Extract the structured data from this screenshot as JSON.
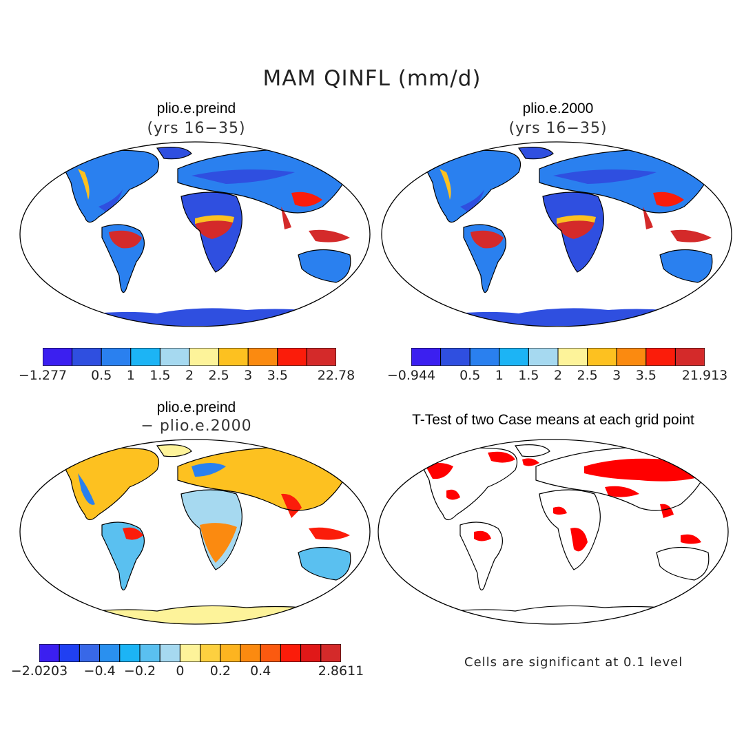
{
  "figure": {
    "title": "MAM QINFL (mm/d)",
    "note": "Cells are significant at 0.1 level"
  },
  "panels": [
    {
      "title": "plio.e.preind",
      "subtitle": "(yrs 16−35)"
    },
    {
      "title": "plio.e.2000",
      "subtitle": "(yrs 16−35)"
    },
    {
      "title": "plio.e.preind",
      "subtitle": "− plio.e.2000"
    },
    {
      "title": "T-Test of two Case means at each grid point",
      "subtitle": ""
    }
  ],
  "colorbars": [
    {
      "colors": [
        "#3b1ff0",
        "#2f4fe0",
        "#2a80ef",
        "#1cb4f5",
        "#a6d9f0",
        "#fdf39a",
        "#fdc120",
        "#fb8a10",
        "#fb1c0a",
        "#d42a2a"
      ],
      "labels": [
        "−1.277",
        "0.5",
        "1",
        "1.5",
        "2",
        "2.5",
        "3",
        "3.5",
        "22.78"
      ],
      "label_positions": [
        0,
        2,
        3,
        4,
        5,
        6,
        7,
        8,
        10
      ]
    },
    {
      "colors": [
        "#3b1ff0",
        "#2f4fe0",
        "#2a80ef",
        "#1cb4f5",
        "#a6d9f0",
        "#fdf39a",
        "#fdc120",
        "#fb8a10",
        "#fb1c0a",
        "#d42a2a"
      ],
      "labels": [
        "−0.944",
        "0.5",
        "1",
        "1.5",
        "2",
        "2.5",
        "3",
        "3.5",
        "21.913"
      ],
      "label_positions": [
        0,
        2,
        3,
        4,
        5,
        6,
        7,
        8,
        10
      ]
    },
    {
      "colors": [
        "#3b1ff0",
        "#2040f2",
        "#3868e8",
        "#2a90ef",
        "#1cb4f5",
        "#5ac0f0",
        "#a6d9f0",
        "#fdf39a",
        "#fdd040",
        "#fdb420",
        "#fb8a10",
        "#fb5a10",
        "#fb1c0a",
        "#e01818",
        "#d42a2a"
      ],
      "labels": [
        "−2.0203",
        "−0.4",
        "−0.2",
        "0",
        "0.2",
        "0.4",
        "2.8611"
      ],
      "label_positions": [
        0,
        3,
        5,
        7,
        9,
        11,
        15
      ]
    }
  ],
  "colors": {
    "ocean": "#ffffff",
    "coast": "#000000",
    "significant": "#ff0000"
  }
}
